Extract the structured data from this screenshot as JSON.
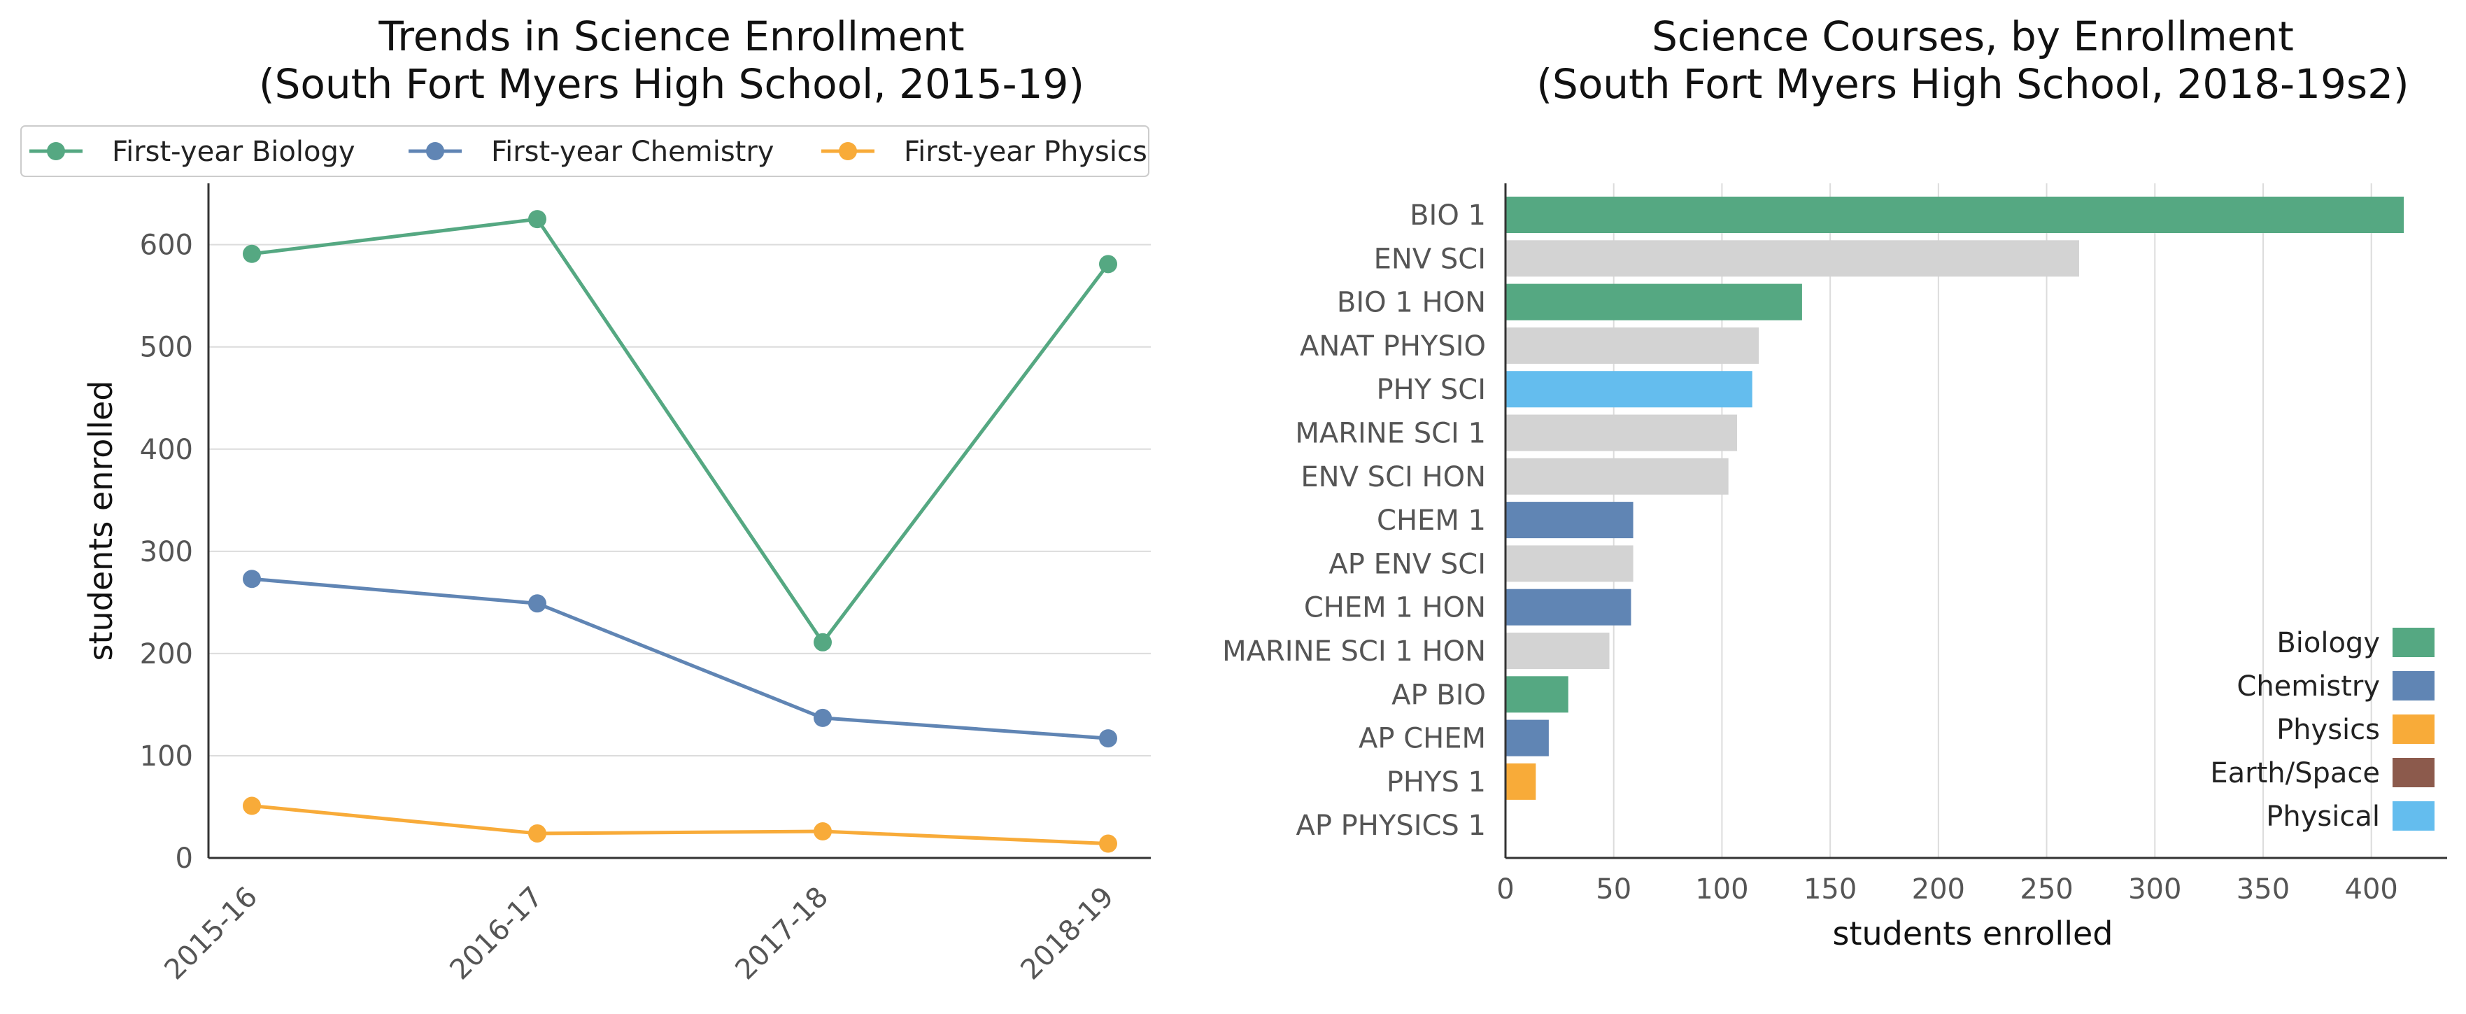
{
  "chart_data": [
    {
      "type": "line",
      "title": "Trends in Science Enrollment\n(South Fort Myers High School, 2015-19)",
      "xlabel": "",
      "ylabel": "students enrolled",
      "categories": [
        "2015-16",
        "2016-17",
        "2017-18",
        "2018-19"
      ],
      "ylim": [
        0,
        660
      ],
      "yticks": [
        0,
        100,
        200,
        300,
        400,
        500,
        600
      ],
      "grid": "horizontal",
      "legend_position": "top",
      "series": [
        {
          "name": "First-year Biology",
          "color": "#55a882",
          "values": [
            591,
            625,
            211,
            581
          ]
        },
        {
          "name": "First-year Chemistry",
          "color": "#6085b4",
          "values": [
            273,
            249,
            137,
            117
          ]
        },
        {
          "name": "First-year Physics",
          "color": "#f8ab39",
          "values": [
            51,
            24,
            26,
            14
          ]
        }
      ]
    },
    {
      "type": "bar",
      "orientation": "horizontal",
      "title": "Science Courses, by Enrollment\n(South Fort Myers High School, 2018-19s2)",
      "xlabel": "students enrolled",
      "ylabel": "",
      "xlim": [
        0,
        435
      ],
      "xticks": [
        0,
        50,
        100,
        150,
        200,
        250,
        300,
        350,
        400
      ],
      "grid": "vertical",
      "legend_position": "lower-right",
      "categories": [
        "BIO 1",
        "ENV SCI",
        "BIO 1 HON",
        "ANAT PHYSIO",
        "PHY SCI",
        "MARINE SCI 1",
        "ENV SCI HON",
        "CHEM 1",
        "AP ENV SCI",
        "CHEM 1 HON",
        "MARINE SCI 1 HON",
        "AP BIO",
        "AP CHEM",
        "PHYS 1",
        "AP PHYSICS 1"
      ],
      "values": [
        415,
        265,
        137,
        117,
        114,
        107,
        103,
        59,
        59,
        58,
        48,
        29,
        20,
        14,
        0
      ],
      "bar_colors": [
        "#55a882",
        "#d3d3d3",
        "#55a882",
        "#d3d3d3",
        "#64bdee",
        "#d3d3d3",
        "#d3d3d3",
        "#6085b4",
        "#d3d3d3",
        "#6085b4",
        "#d3d3d3",
        "#55a882",
        "#6085b4",
        "#f8ab39",
        "#d3d3d3"
      ],
      "legend": [
        {
          "name": "Biology",
          "color": "#55a882"
        },
        {
          "name": "Chemistry",
          "color": "#6085b4"
        },
        {
          "name": "Physics",
          "color": "#f8ab39"
        },
        {
          "name": "Earth/Space",
          "color": "#8c5a4c"
        },
        {
          "name": "Physical",
          "color": "#64bdee"
        }
      ]
    }
  ]
}
